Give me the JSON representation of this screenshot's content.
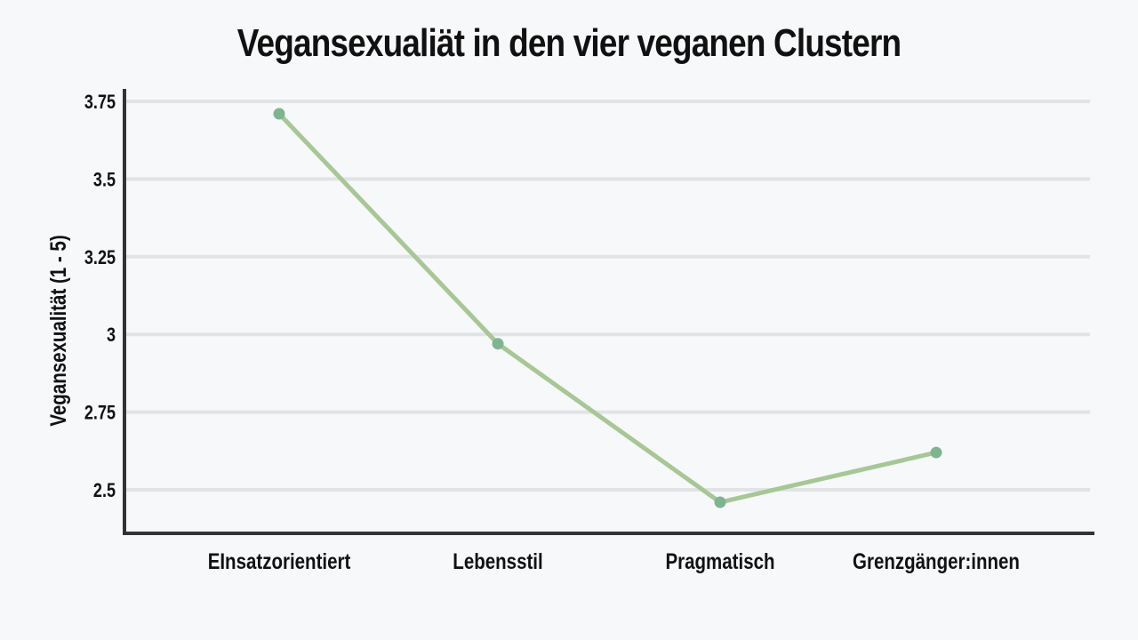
{
  "chart_data": {
    "type": "line",
    "title": "Vegansexualiät in den vier veganen Clustern",
    "xlabel": "",
    "ylabel": "Vegansexualität (1 - 5)",
    "categories": [
      "EInsatzorientiert",
      "Lebensstil",
      "Pragmatisch",
      "Grenzgänger:innen"
    ],
    "series": [
      {
        "values": [
          3.71,
          2.97,
          2.46,
          2.62
        ]
      }
    ],
    "y_ticks": [
      2.5,
      2.75,
      3,
      3.25,
      3.5,
      3.75
    ],
    "y_tick_labels": [
      "2.5",
      "2.75",
      "3",
      "3.25",
      "3.5",
      "3.75"
    ],
    "ylim": [
      2.36,
      3.79
    ],
    "grid": true,
    "colors": {
      "line": "#a7c796",
      "marker": "#7fb491",
      "grid": "#e2e3e6",
      "axis": "#333333"
    }
  }
}
